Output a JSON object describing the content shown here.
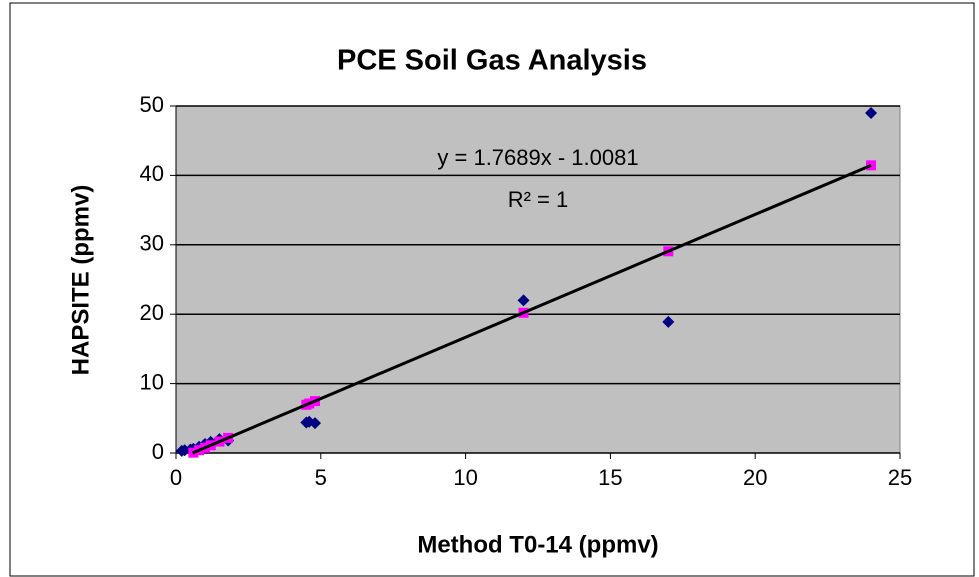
{
  "chart_data": {
    "type": "scatter",
    "title": "PCE Soil Gas Analysis",
    "x_label": "Method T0-14 (ppmv)",
    "y_label": "HAPSITE (ppmv)",
    "annotations": [
      "y = 1.7689x - 1.0081",
      "R² = 1"
    ],
    "xlim": [
      0,
      25
    ],
    "xticks": [
      0,
      5,
      10,
      15,
      20,
      25
    ],
    "ylim": [
      0,
      50
    ],
    "yticks": [
      0,
      10,
      20,
      30,
      40,
      50
    ],
    "grid": true,
    "plot_background": "#c0c0c0",
    "series": [
      {
        "color": "#000080",
        "marker": "diamond",
        "x": [
          0.2,
          0.3,
          0.5,
          0.6,
          0.8,
          1.0,
          1.2,
          1.5,
          1.8,
          4.5,
          4.6,
          4.8,
          12,
          17,
          24
        ],
        "values": [
          0.3,
          0.4,
          0.5,
          0.6,
          0.9,
          1.3,
          1.6,
          2.0,
          1.8,
          4.4,
          4.5,
          4.3,
          22,
          18.9,
          49
        ]
      },
      {
        "color": "#ff00ff",
        "marker": "square",
        "x": [
          0.6,
          0.8,
          1.0,
          1.2,
          1.5,
          1.8,
          4.5,
          4.6,
          4.8,
          12,
          17,
          24
        ],
        "values": [
          0.05,
          0.41,
          0.76,
          1.11,
          1.65,
          2.18,
          6.95,
          7.13,
          7.48,
          20.2,
          29.06,
          41.45
        ]
      }
    ],
    "trendline": {
      "color": "#000000",
      "x": [
        0.57,
        24
      ],
      "values": [
        0,
        41.45
      ]
    }
  }
}
